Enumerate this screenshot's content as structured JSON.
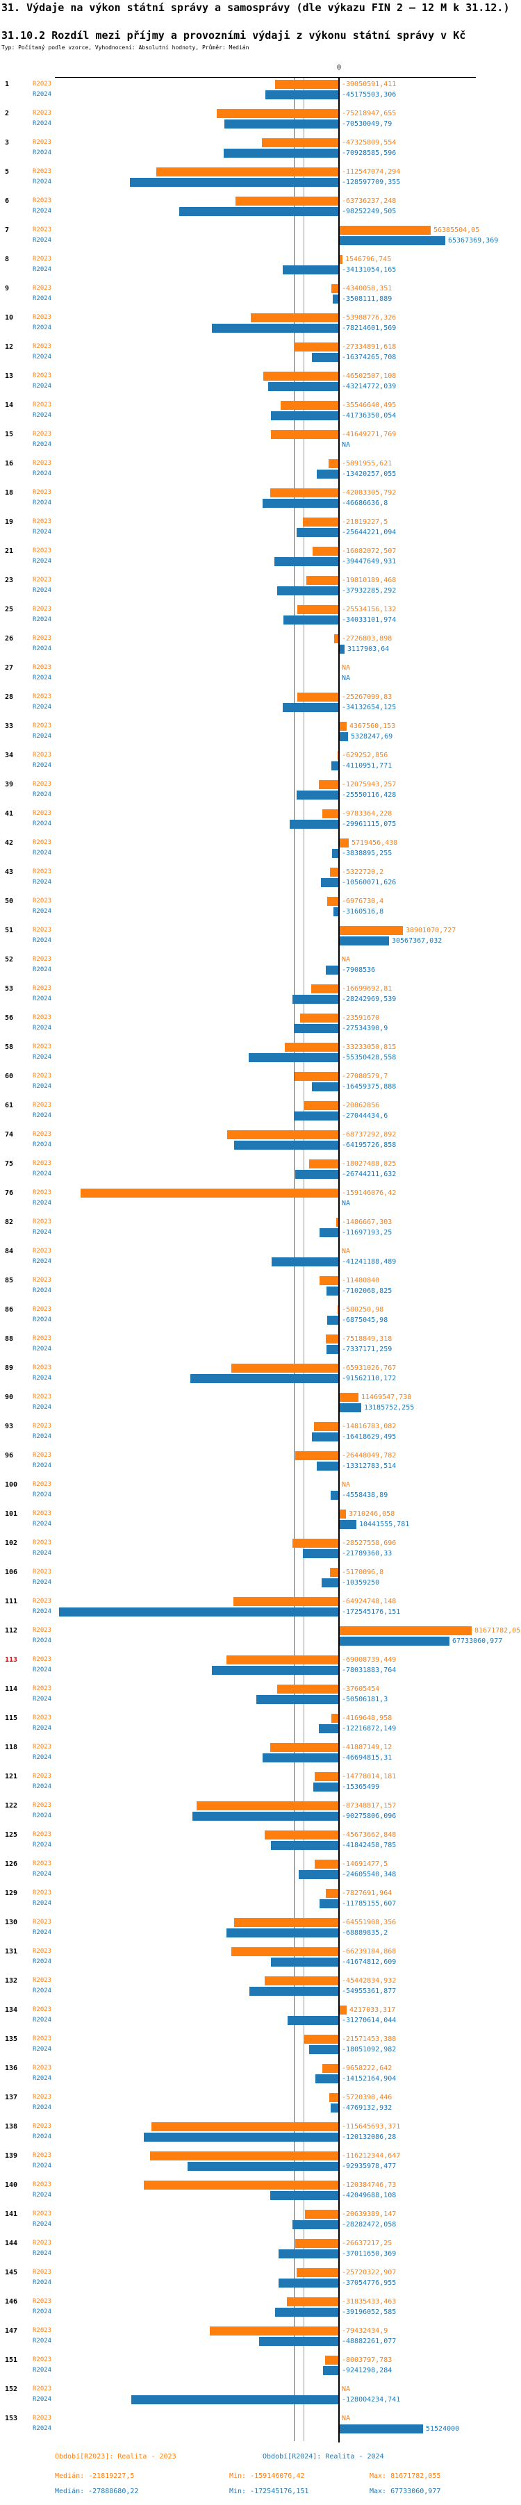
{
  "title": "31. Výdaje na výkon státní správy a samosprávy (dle výkazu FIN 2 – 12 M k 31.12.)",
  "subtitle": "31.10.2 Rozdíl mezi příjmy a provozními výdaji z výkonu státní správy v Kč",
  "type_line": "Typ: Počítaný podle vzorce, Vyhodnocení: Absolutní hodnoty, Průměr: Medián",
  "colors": {
    "r2023": "#ff7f0e",
    "r2024": "#1f77b4",
    "highlight": "#e8000b",
    "axis": "#000000"
  },
  "chart_data": {
    "type": "bar",
    "orientation": "horizontal",
    "diverging": true,
    "na_label": "NA",
    "highlight_category": "113",
    "x_axis": {
      "zero_label": "0",
      "min": -172545176.151,
      "max": 81671782.055
    },
    "medians": {
      "R2023": -21819227.5,
      "R2024": -27888680.22
    },
    "categories": [
      "1",
      "2",
      "3",
      "5",
      "6",
      "7",
      "8",
      "9",
      "10",
      "12",
      "13",
      "14",
      "15",
      "16",
      "18",
      "19",
      "21",
      "23",
      "25",
      "26",
      "27",
      "28",
      "33",
      "34",
      "39",
      "41",
      "42",
      "43",
      "50",
      "51",
      "52",
      "53",
      "56",
      "58",
      "60",
      "61",
      "74",
      "75",
      "76",
      "82",
      "84",
      "85",
      "86",
      "88",
      "89",
      "90",
      "93",
      "96",
      "100",
      "101",
      "102",
      "106",
      "111",
      "112",
      "113",
      "114",
      "115",
      "118",
      "121",
      "122",
      "125",
      "126",
      "129",
      "130",
      "131",
      "132",
      "134",
      "135",
      "136",
      "137",
      "138",
      "139",
      "140",
      "141",
      "144",
      "145",
      "146",
      "147",
      "151",
      "152",
      "153"
    ],
    "series": [
      {
        "name": "R2023",
        "labels": [
          "-39050591,411",
          "-75218947,655",
          "-47325809,554",
          "-112547074,294",
          "-63736237,248",
          "56385504,05",
          "1546796,745",
          "-4340058,351",
          "-53988776,326",
          "-27334891,618",
          "-46502507,108",
          "-35546640,495",
          "-41649271,769",
          "-5891955,621",
          "-42083305,792",
          "-21819227,5",
          "-16082072,507",
          "-19810189,468",
          "-25534156,132",
          "-2726803,898",
          "NA",
          "-25267099,83",
          "4367560,153",
          "-629252,856",
          "-12075943,257",
          "-9783364,228",
          "5719456,438",
          "-5322720,2",
          "-6976730,4",
          "38901070,727",
          "NA",
          "-16699692,81",
          "-23591670",
          "-33233050,815",
          "-27080579,7",
          "-20862856",
          "-68737292,892",
          "-18027488,825",
          "-159146076,42",
          "-1486667,303",
          "NA",
          "-11480840",
          "-580250,98",
          "-7518849,318",
          "-65931026,767",
          "11469547,738",
          "-14816783,082",
          "-26448049,782",
          "NA",
          "3710246,058",
          "-28527558,696",
          "-5170096,8",
          "-64924748,148",
          "81671782,055",
          "-69008739,449",
          "-37605454",
          "-4169648,958",
          "-41887149,12",
          "-14778014,181",
          "-87348817,157",
          "-45673662,848",
          "-14691477,5",
          "-7827691,964",
          "-64551908,356",
          "-66239184,868",
          "-45442834,932",
          "4217033,317",
          "-21571453,388",
          "-9658222,642",
          "-5720398,446",
          "-115645693,371",
          "-116212344,647",
          "-120384746,73",
          "-20639389,147",
          "-26637217,25",
          "-25720322,907",
          "-31835433,463",
          "-79432434,9",
          "-8003797,783",
          "NA",
          "NA"
        ]
      },
      {
        "name": "R2024",
        "labels": [
          "-45175503,306",
          "-70530049,79",
          "-70928585,596",
          "-128597709,355",
          "-98252249,505",
          "65367369,369",
          "-34131054,165",
          "-3508111,889",
          "-78214601,569",
          "-16374265,708",
          "-43214772,039",
          "-41736350,054",
          "NA",
          "-13420257,055",
          "-46686636,8",
          "-25644221,094",
          "-39447649,931",
          "-37932285,292",
          "-34033101,974",
          "3117903,64",
          "NA",
          "-34132654,125",
          "5328247,69",
          "-4110951,771",
          "-25550116,428",
          "-29961115,075",
          "-3838895,255",
          "-10560071,626",
          "-3160516,8",
          "30567367,032",
          "-7908536",
          "-28242969,539",
          "-27534390,9",
          "-55350428,558",
          "-16459375,888",
          "-27044434,6",
          "-64195726,858",
          "-26744211,632",
          "NA",
          "-11697193,25",
          "-41241188,489",
          "-7102068,825",
          "-6875045,98",
          "-7337171,259",
          "-91562110,172",
          "13185752,255",
          "-16418629,495",
          "-13312783,514",
          "-4558438,89",
          "10441555,781",
          "-21789360,33",
          "-10359250",
          "-172545176,151",
          "67733060,977",
          "-78031883,764",
          "-50506181,3",
          "-12216872,149",
          "-46694815,31",
          "-15365499",
          "-90275806,096",
          "-41842458,785",
          "-24605540,348",
          "-11785155,607",
          "-68889835,2",
          "-41674812,609",
          "-54955361,877",
          "-31270614,044",
          "-18051092,982",
          "-14152164,904",
          "-4769132,932",
          "-120132086,28",
          "-92935978,477",
          "-42049688,108",
          "-28282472,058",
          "-37011650,369",
          "-37054776,955",
          "-39196052,585",
          "-48882261,077",
          "-9241298,284",
          "-128004234,741",
          "51524000"
        ]
      }
    ]
  },
  "footer": {
    "r2023": {
      "period": "Období[R2023]: Realita - 2023",
      "median": "Medián: -21819227,5",
      "min": "Min: -159146076,42",
      "max": "Max: 81671782,055"
    },
    "r2024": {
      "period": "Období[R2024]: Realita - 2024",
      "median": "Medián: -27888680,22",
      "min": "Min: -172545176,151",
      "max": "Max: 67733060,977"
    }
  }
}
